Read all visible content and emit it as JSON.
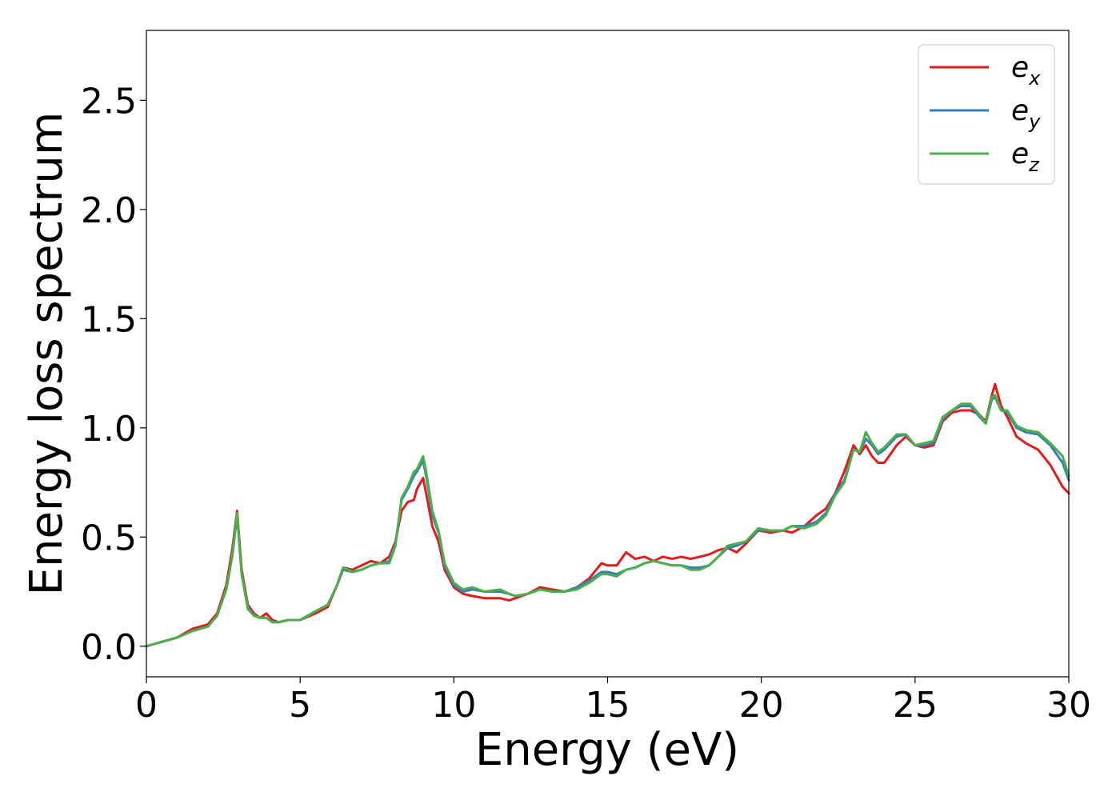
{
  "chart_data": {
    "type": "line",
    "title": "",
    "xlabel": "Energy (eV)",
    "ylabel": "Energy loss spectrum",
    "xlim": [
      0,
      30
    ],
    "ylim": [
      -0.14,
      2.82
    ],
    "xticks": [
      0,
      5,
      10,
      15,
      20,
      25,
      30
    ],
    "xtick_labels": [
      "0",
      "5",
      "10",
      "15",
      "20",
      "25",
      "30"
    ],
    "yticks": [
      0.0,
      0.5,
      1.0,
      1.5,
      2.0,
      2.5
    ],
    "ytick_labels": [
      "0.0",
      "0.5",
      "1.0",
      "1.5",
      "2.0",
      "2.5"
    ],
    "grid": false,
    "legend_position": "top-right",
    "series": [
      {
        "name": "e_x",
        "label_main": "e",
        "label_sub": "x",
        "color": "#e41a1c",
        "x": [
          0,
          0.5,
          1,
          1.5,
          2,
          2.3,
          2.6,
          2.8,
          2.95,
          3.1,
          3.3,
          3.5,
          3.7,
          3.9,
          4.1,
          4.3,
          4.6,
          5,
          5.5,
          5.9,
          6.2,
          6.4,
          6.7,
          7,
          7.3,
          7.6,
          7.9,
          8.1,
          8.3,
          8.5,
          8.7,
          8.8,
          9.0,
          9.1,
          9.3,
          9.5,
          9.7,
          10,
          10.3,
          10.6,
          11,
          11.5,
          11.8,
          12.0,
          12.4,
          12.8,
          13.2,
          13.6,
          14.0,
          14.4,
          14.8,
          15.0,
          15.3,
          15.6,
          15.9,
          16.2,
          16.5,
          16.8,
          17.1,
          17.4,
          17.7,
          18.0,
          18.3,
          18.6,
          18.9,
          19.2,
          19.5,
          19.9,
          20.3,
          20.7,
          21.0,
          21.4,
          21.8,
          22.1,
          22.4,
          22.7,
          23.0,
          23.2,
          23.4,
          23.6,
          23.8,
          24.0,
          24.2,
          24.4,
          24.7,
          25.0,
          25.3,
          25.6,
          25.9,
          26.2,
          26.5,
          26.8,
          27.1,
          27.3,
          27.5,
          27.6,
          27.8,
          28.0,
          28.3,
          28.6,
          29.0,
          29.4,
          29.8,
          30.0
        ],
        "y": [
          0.0,
          0.02,
          0.04,
          0.08,
          0.1,
          0.15,
          0.28,
          0.45,
          0.62,
          0.35,
          0.19,
          0.15,
          0.13,
          0.15,
          0.12,
          0.11,
          0.12,
          0.12,
          0.15,
          0.18,
          0.28,
          0.36,
          0.35,
          0.37,
          0.39,
          0.38,
          0.41,
          0.48,
          0.62,
          0.66,
          0.67,
          0.72,
          0.77,
          0.7,
          0.55,
          0.48,
          0.35,
          0.27,
          0.24,
          0.23,
          0.22,
          0.22,
          0.21,
          0.22,
          0.24,
          0.27,
          0.26,
          0.25,
          0.27,
          0.31,
          0.38,
          0.37,
          0.37,
          0.43,
          0.4,
          0.41,
          0.39,
          0.41,
          0.4,
          0.41,
          0.4,
          0.41,
          0.42,
          0.44,
          0.45,
          0.43,
          0.47,
          0.53,
          0.52,
          0.53,
          0.52,
          0.55,
          0.6,
          0.63,
          0.7,
          0.8,
          0.92,
          0.88,
          0.92,
          0.87,
          0.84,
          0.84,
          0.88,
          0.92,
          0.96,
          0.92,
          0.91,
          0.92,
          1.03,
          1.07,
          1.08,
          1.08,
          1.06,
          1.03,
          1.15,
          1.2,
          1.1,
          1.05,
          0.96,
          0.93,
          0.9,
          0.83,
          0.73,
          0.7
        ]
      },
      {
        "name": "e_y",
        "label_main": "e",
        "label_sub": "y",
        "color": "#377eb8",
        "x": [
          0,
          0.5,
          1,
          1.5,
          2,
          2.3,
          2.6,
          2.8,
          2.95,
          3.1,
          3.3,
          3.5,
          3.7,
          3.9,
          4.1,
          4.3,
          4.6,
          5,
          5.5,
          5.9,
          6.2,
          6.4,
          6.7,
          7,
          7.3,
          7.6,
          7.9,
          8.1,
          8.3,
          8.5,
          8.7,
          8.8,
          9.0,
          9.1,
          9.3,
          9.5,
          9.7,
          10,
          10.3,
          10.6,
          11,
          11.5,
          11.8,
          12.0,
          12.4,
          12.8,
          13.2,
          13.6,
          14.0,
          14.4,
          14.8,
          15.0,
          15.3,
          15.6,
          15.9,
          16.2,
          16.5,
          16.8,
          17.1,
          17.4,
          17.7,
          18.0,
          18.3,
          18.6,
          18.9,
          19.2,
          19.5,
          19.9,
          20.3,
          20.7,
          21.0,
          21.4,
          21.8,
          22.1,
          22.4,
          22.7,
          23.0,
          23.2,
          23.4,
          23.6,
          23.8,
          24.0,
          24.2,
          24.4,
          24.7,
          25.0,
          25.3,
          25.6,
          25.9,
          26.2,
          26.5,
          26.8,
          27.1,
          27.3,
          27.5,
          27.6,
          27.8,
          28.0,
          28.3,
          28.6,
          29.0,
          29.4,
          29.8,
          30.0
        ],
        "y": [
          0.0,
          0.02,
          0.04,
          0.07,
          0.09,
          0.14,
          0.26,
          0.42,
          0.6,
          0.33,
          0.18,
          0.14,
          0.13,
          0.13,
          0.11,
          0.11,
          0.12,
          0.12,
          0.16,
          0.19,
          0.28,
          0.35,
          0.34,
          0.35,
          0.37,
          0.38,
          0.39,
          0.47,
          0.67,
          0.72,
          0.78,
          0.8,
          0.85,
          0.78,
          0.6,
          0.52,
          0.37,
          0.28,
          0.25,
          0.26,
          0.25,
          0.25,
          0.24,
          0.23,
          0.24,
          0.26,
          0.25,
          0.25,
          0.27,
          0.3,
          0.34,
          0.34,
          0.33,
          0.35,
          0.36,
          0.38,
          0.39,
          0.38,
          0.37,
          0.37,
          0.36,
          0.36,
          0.37,
          0.41,
          0.45,
          0.46,
          0.48,
          0.53,
          0.53,
          0.53,
          0.55,
          0.55,
          0.57,
          0.61,
          0.7,
          0.76,
          0.9,
          0.89,
          0.95,
          0.92,
          0.88,
          0.9,
          0.93,
          0.96,
          0.97,
          0.92,
          0.92,
          0.93,
          1.04,
          1.08,
          1.1,
          1.1,
          1.05,
          1.02,
          1.13,
          1.14,
          1.08,
          1.07,
          1.0,
          0.98,
          0.97,
          0.92,
          0.84,
          0.76
        ]
      },
      {
        "name": "e_z",
        "label_main": "e",
        "label_sub": "z",
        "color": "#4daf4a",
        "x": [
          0,
          0.5,
          1,
          1.5,
          2,
          2.3,
          2.6,
          2.8,
          2.95,
          3.1,
          3.3,
          3.5,
          3.7,
          3.9,
          4.1,
          4.3,
          4.6,
          5,
          5.5,
          5.9,
          6.2,
          6.4,
          6.7,
          7,
          7.3,
          7.6,
          7.9,
          8.1,
          8.3,
          8.5,
          8.7,
          8.8,
          9.0,
          9.1,
          9.3,
          9.5,
          9.7,
          10,
          10.3,
          10.6,
          11,
          11.5,
          11.8,
          12.0,
          12.4,
          12.8,
          13.2,
          13.6,
          14.0,
          14.4,
          14.8,
          15.0,
          15.3,
          15.6,
          15.9,
          16.2,
          16.5,
          16.8,
          17.1,
          17.4,
          17.7,
          18.0,
          18.3,
          18.6,
          18.9,
          19.2,
          19.5,
          19.9,
          20.3,
          20.7,
          21.0,
          21.4,
          21.8,
          22.1,
          22.4,
          22.7,
          23.0,
          23.2,
          23.4,
          23.6,
          23.8,
          24.0,
          24.2,
          24.4,
          24.7,
          25.0,
          25.3,
          25.6,
          25.9,
          26.2,
          26.5,
          26.8,
          27.1,
          27.3,
          27.5,
          27.6,
          27.8,
          28.0,
          28.3,
          28.6,
          29.0,
          29.4,
          29.8,
          30.0
        ],
        "y": [
          0.0,
          0.02,
          0.04,
          0.07,
          0.09,
          0.14,
          0.26,
          0.42,
          0.61,
          0.33,
          0.17,
          0.14,
          0.13,
          0.13,
          0.11,
          0.11,
          0.12,
          0.12,
          0.16,
          0.19,
          0.28,
          0.36,
          0.34,
          0.35,
          0.37,
          0.38,
          0.38,
          0.46,
          0.68,
          0.73,
          0.8,
          0.81,
          0.87,
          0.8,
          0.62,
          0.53,
          0.38,
          0.29,
          0.26,
          0.27,
          0.25,
          0.26,
          0.24,
          0.23,
          0.24,
          0.26,
          0.25,
          0.25,
          0.26,
          0.29,
          0.33,
          0.33,
          0.32,
          0.35,
          0.36,
          0.38,
          0.39,
          0.38,
          0.37,
          0.37,
          0.35,
          0.35,
          0.37,
          0.41,
          0.46,
          0.47,
          0.48,
          0.54,
          0.53,
          0.53,
          0.55,
          0.54,
          0.56,
          0.6,
          0.69,
          0.75,
          0.9,
          0.89,
          0.98,
          0.93,
          0.89,
          0.91,
          0.94,
          0.97,
          0.97,
          0.92,
          0.93,
          0.94,
          1.05,
          1.08,
          1.11,
          1.11,
          1.06,
          1.02,
          1.14,
          1.15,
          1.08,
          1.08,
          1.01,
          0.99,
          0.98,
          0.93,
          0.87,
          0.78
        ]
      }
    ]
  }
}
